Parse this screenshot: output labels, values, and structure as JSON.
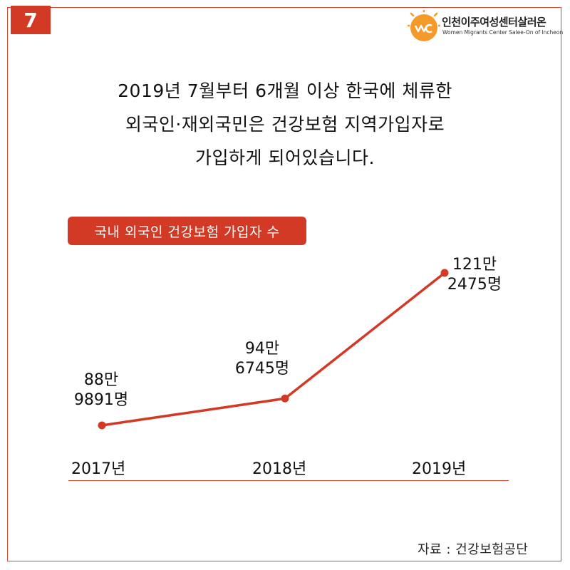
{
  "page_number": "7",
  "logo": {
    "name": "인천이주여성센터살러온",
    "subtitle": "Women Migrants Center Salee-On of Incheon"
  },
  "headline": {
    "line1": "2019년 7월부터 6개월 이상 한국에 체류한",
    "line2": "외국인·재외국민은 건강보험 지역가입자로",
    "line3": "가입하게 되어있습니다."
  },
  "source": "자료 : 건강보험공단",
  "chart_data": {
    "type": "line",
    "title": "국내 외국인 건강보험 가입자 수",
    "categories": [
      "2017년",
      "2018년",
      "2019년"
    ],
    "values": [
      889891,
      946745,
      1212475
    ],
    "data_labels": [
      {
        "line1": "88만",
        "line2": "9891명"
      },
      {
        "line1": "94만",
        "line2": "6745명"
      },
      {
        "line1": "121만",
        "line2": "2475명"
      }
    ],
    "color": "#d23a26",
    "grid": false
  }
}
